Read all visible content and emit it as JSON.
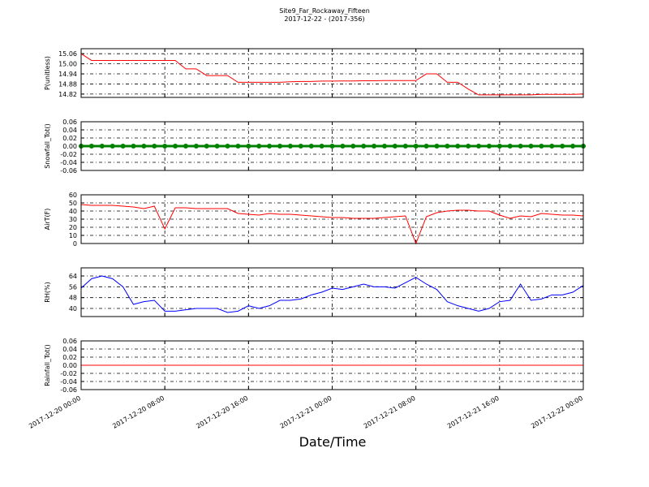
{
  "title": "Site9_Far_Rockaway_Fifteen",
  "subtitle": "2017-12-22 - (2017-356)",
  "xlabel": "Date/Time",
  "chart_data": [
    {
      "type": "line",
      "ylabel": "P(unitless)",
      "color": "#ff0000",
      "grid": true,
      "xlim": [
        "2017-12-20 00:00",
        "2017-12-22 00:00"
      ],
      "xticks": [
        "2017-12-20 00:00",
        "2017-12-20 08:00",
        "2017-12-20 16:00",
        "2017-12-21 00:00",
        "2017-12-21 08:00",
        "2017-12-21 16:00",
        "2017-12-22 00:00"
      ],
      "ylim": [
        14.8,
        15.09
      ],
      "yticks": [
        14.82,
        14.88,
        14.94,
        {
          "value": 15,
          "label": "15.00"
        },
        15.06
      ],
      "x": [
        "2017-12-20 00:00",
        "2017-12-20 01:00",
        "2017-12-20 02:00",
        "2017-12-20 03:00",
        "2017-12-20 04:00",
        "2017-12-20 05:00",
        "2017-12-20 06:00",
        "2017-12-20 07:00",
        "2017-12-20 08:00",
        "2017-12-20 09:00",
        "2017-12-20 10:00",
        "2017-12-20 11:00",
        "2017-12-20 12:00",
        "2017-12-20 13:00",
        "2017-12-20 14:00",
        "2017-12-20 15:00",
        "2017-12-20 16:00",
        "2017-12-20 17:00",
        "2017-12-20 18:00",
        "2017-12-20 19:00",
        "2017-12-20 20:00",
        "2017-12-20 21:00",
        "2017-12-20 22:00",
        "2017-12-20 23:00",
        "2017-12-21 00:00",
        "2017-12-21 01:00",
        "2017-12-21 02:00",
        "2017-12-21 03:00",
        "2017-12-21 04:00",
        "2017-12-21 05:00",
        "2017-12-21 06:00",
        "2017-12-21 07:00",
        "2017-12-21 08:00",
        "2017-12-21 09:00",
        "2017-12-21 10:00",
        "2017-12-21 11:00",
        "2017-12-21 12:00",
        "2017-12-21 13:00",
        "2017-12-21 14:00",
        "2017-12-21 15:00",
        "2017-12-21 16:00",
        "2017-12-21 17:00",
        "2017-12-21 18:00",
        "2017-12-21 19:00",
        "2017-12-21 20:00",
        "2017-12-21 21:00",
        "2017-12-21 22:00",
        "2017-12-21 23:00",
        "2017-12-22 00:00"
      ],
      "values": [
        15.06,
        15.02,
        15.02,
        15.02,
        15.02,
        15.02,
        15.02,
        15.02,
        15.02,
        15.02,
        14.97,
        14.97,
        14.93,
        14.93,
        14.93,
        14.89,
        14.89,
        14.89,
        14.89,
        14.89,
        14.893,
        14.895,
        14.895,
        14.897,
        14.897,
        14.898,
        14.898,
        14.899,
        14.899,
        14.9,
        14.9,
        14.9,
        14.9,
        14.94,
        14.94,
        14.89,
        14.89,
        14.85,
        14.815,
        14.815,
        14.815,
        14.815,
        14.815,
        14.815,
        14.818,
        14.818,
        14.818,
        14.818,
        14.82
      ]
    },
    {
      "type": "line",
      "ylabel": "Snowfall_Tot()",
      "color": "#008000",
      "marker": "o",
      "grid": true,
      "xlim": [
        "2017-12-20 00:00",
        "2017-12-22 00:00"
      ],
      "xticks": [
        "2017-12-20 00:00",
        "2017-12-20 08:00",
        "2017-12-20 16:00",
        "2017-12-21 00:00",
        "2017-12-21 08:00",
        "2017-12-21 16:00",
        "2017-12-22 00:00"
      ],
      "ylim": [
        -0.06,
        0.06
      ],
      "yticks": [
        -0.06,
        -0.04,
        -0.02,
        {
          "value": 0,
          "label": "0.00"
        },
        0.02,
        0.04,
        0.06
      ],
      "x": [
        "2017-12-20 00:00",
        "2017-12-20 01:00",
        "2017-12-20 02:00",
        "2017-12-20 03:00",
        "2017-12-20 04:00",
        "2017-12-20 05:00",
        "2017-12-20 06:00",
        "2017-12-20 07:00",
        "2017-12-20 08:00",
        "2017-12-20 09:00",
        "2017-12-20 10:00",
        "2017-12-20 11:00",
        "2017-12-20 12:00",
        "2017-12-20 13:00",
        "2017-12-20 14:00",
        "2017-12-20 15:00",
        "2017-12-20 16:00",
        "2017-12-20 17:00",
        "2017-12-20 18:00",
        "2017-12-20 19:00",
        "2017-12-20 20:00",
        "2017-12-20 21:00",
        "2017-12-20 22:00",
        "2017-12-20 23:00",
        "2017-12-21 00:00",
        "2017-12-21 01:00",
        "2017-12-21 02:00",
        "2017-12-21 03:00",
        "2017-12-21 04:00",
        "2017-12-21 05:00",
        "2017-12-21 06:00",
        "2017-12-21 07:00",
        "2017-12-21 08:00",
        "2017-12-21 09:00",
        "2017-12-21 10:00",
        "2017-12-21 11:00",
        "2017-12-21 12:00",
        "2017-12-21 13:00",
        "2017-12-21 14:00",
        "2017-12-21 15:00",
        "2017-12-21 16:00",
        "2017-12-21 17:00",
        "2017-12-21 18:00",
        "2017-12-21 19:00",
        "2017-12-21 20:00",
        "2017-12-21 21:00",
        "2017-12-21 22:00",
        "2017-12-21 23:00",
        "2017-12-22 00:00"
      ],
      "values": [
        0,
        0,
        0,
        0,
        0,
        0,
        0,
        0,
        0,
        0,
        0,
        0,
        0,
        0,
        0,
        0,
        0,
        0,
        0,
        0,
        0,
        0,
        0,
        0,
        0,
        0,
        0,
        0,
        0,
        0,
        0,
        0,
        0,
        0,
        0,
        0,
        0,
        0,
        0,
        0,
        0,
        0,
        0,
        0,
        0,
        0,
        0,
        0,
        0
      ]
    },
    {
      "type": "line",
      "ylabel": "AirT(F)",
      "color": "#ff0000",
      "grid": true,
      "xlim": [
        "2017-12-20 00:00",
        "2017-12-22 00:00"
      ],
      "xticks": [
        "2017-12-20 00:00",
        "2017-12-20 08:00",
        "2017-12-20 16:00",
        "2017-12-21 00:00",
        "2017-12-21 08:00",
        "2017-12-21 16:00",
        "2017-12-22 00:00"
      ],
      "ylim": [
        0,
        60
      ],
      "yticks": [
        0,
        10,
        20,
        30,
        40,
        50,
        60
      ],
      "x": [
        "2017-12-20 00:00",
        "2017-12-20 01:00",
        "2017-12-20 02:00",
        "2017-12-20 03:00",
        "2017-12-20 04:00",
        "2017-12-20 05:00",
        "2017-12-20 06:00",
        "2017-12-20 07:00",
        "2017-12-20 08:00",
        "2017-12-20 09:00",
        "2017-12-20 10:00",
        "2017-12-20 11:00",
        "2017-12-20 12:00",
        "2017-12-20 13:00",
        "2017-12-20 14:00",
        "2017-12-20 15:00",
        "2017-12-20 16:00",
        "2017-12-20 17:00",
        "2017-12-20 18:00",
        "2017-12-20 19:00",
        "2017-12-20 20:00",
        "2017-12-20 21:00",
        "2017-12-20 22:00",
        "2017-12-20 23:00",
        "2017-12-21 00:00",
        "2017-12-21 01:00",
        "2017-12-21 02:00",
        "2017-12-21 03:00",
        "2017-12-21 04:00",
        "2017-12-21 05:00",
        "2017-12-21 06:00",
        "2017-12-21 07:00",
        "2017-12-21 08:00",
        "2017-12-21 09:00",
        "2017-12-21 10:00",
        "2017-12-21 11:00",
        "2017-12-21 12:00",
        "2017-12-21 13:00",
        "2017-12-21 14:00",
        "2017-12-21 15:00",
        "2017-12-21 16:00",
        "2017-12-21 17:00",
        "2017-12-21 18:00",
        "2017-12-21 19:00",
        "2017-12-21 20:00",
        "2017-12-21 21:00",
        "2017-12-21 22:00",
        "2017-12-21 23:00",
        "2017-12-22 00:00"
      ],
      "values": [
        48,
        47,
        47,
        47,
        46,
        45,
        43,
        46,
        18,
        44,
        44,
        43,
        43,
        43,
        43,
        37,
        36,
        35,
        37,
        36,
        36,
        35,
        34,
        33,
        32,
        32,
        31,
        31,
        31,
        32,
        33,
        34,
        0,
        33,
        38,
        40,
        41,
        41,
        40,
        40,
        35,
        31,
        34,
        33,
        37,
        36,
        35,
        35,
        34
      ]
    },
    {
      "type": "line",
      "ylabel": "RH(%)",
      "color": "#0000ff",
      "grid": true,
      "xlim": [
        "2017-12-20 00:00",
        "2017-12-22 00:00"
      ],
      "xticks": [
        "2017-12-20 00:00",
        "2017-12-20 08:00",
        "2017-12-20 16:00",
        "2017-12-21 00:00",
        "2017-12-21 08:00",
        "2017-12-21 16:00",
        "2017-12-22 00:00"
      ],
      "ylim": [
        34,
        70
      ],
      "yticks": [
        40,
        48,
        56,
        64
      ],
      "x": [
        "2017-12-20 00:00",
        "2017-12-20 01:00",
        "2017-12-20 02:00",
        "2017-12-20 03:00",
        "2017-12-20 04:00",
        "2017-12-20 05:00",
        "2017-12-20 06:00",
        "2017-12-20 07:00",
        "2017-12-20 08:00",
        "2017-12-20 09:00",
        "2017-12-20 10:00",
        "2017-12-20 11:00",
        "2017-12-20 12:00",
        "2017-12-20 13:00",
        "2017-12-20 14:00",
        "2017-12-20 15:00",
        "2017-12-20 16:00",
        "2017-12-20 17:00",
        "2017-12-20 18:00",
        "2017-12-20 19:00",
        "2017-12-20 20:00",
        "2017-12-20 21:00",
        "2017-12-20 22:00",
        "2017-12-20 23:00",
        "2017-12-21 00:00",
        "2017-12-21 01:00",
        "2017-12-21 02:00",
        "2017-12-21 03:00",
        "2017-12-21 04:00",
        "2017-12-21 05:00",
        "2017-12-21 06:00",
        "2017-12-21 07:00",
        "2017-12-21 08:00",
        "2017-12-21 09:00",
        "2017-12-21 10:00",
        "2017-12-21 11:00",
        "2017-12-21 12:00",
        "2017-12-21 13:00",
        "2017-12-21 14:00",
        "2017-12-21 15:00",
        "2017-12-21 16:00",
        "2017-12-21 17:00",
        "2017-12-21 18:00",
        "2017-12-21 19:00",
        "2017-12-21 20:00",
        "2017-12-21 21:00",
        "2017-12-21 22:00",
        "2017-12-21 23:00",
        "2017-12-22 00:00"
      ],
      "values": [
        55,
        62,
        64,
        62,
        56,
        43,
        45,
        46,
        38,
        38,
        39,
        40,
        40,
        40,
        37,
        38,
        42,
        40,
        42,
        46,
        46,
        47,
        50,
        52,
        55,
        54,
        56,
        58,
        56,
        56,
        55,
        59,
        63,
        58,
        54,
        45,
        42,
        40,
        38,
        40,
        45,
        46,
        58,
        46,
        47,
        50,
        50,
        52,
        57
      ]
    },
    {
      "type": "line",
      "ylabel": "Rainfall_Tot()",
      "color": "#ff0000",
      "grid": true,
      "xlim": [
        "2017-12-20 00:00",
        "2017-12-22 00:00"
      ],
      "xticks": [
        "2017-12-20 00:00",
        "2017-12-20 08:00",
        "2017-12-20 16:00",
        "2017-12-21 00:00",
        "2017-12-21 08:00",
        "2017-12-21 16:00",
        "2017-12-22 00:00"
      ],
      "ylim": [
        -0.06,
        0.06
      ],
      "yticks": [
        -0.06,
        -0.04,
        -0.02,
        {
          "value": 0,
          "label": "0.00"
        },
        0.02,
        0.04,
        0.06
      ],
      "x": [
        "2017-12-20 00:00",
        "2017-12-20 04:00",
        "2017-12-20 08:00",
        "2017-12-20 12:00",
        "2017-12-20 16:00",
        "2017-12-20 20:00",
        "2017-12-21 00:00",
        "2017-12-21 04:00",
        "2017-12-21 08:00",
        "2017-12-21 12:00",
        "2017-12-21 16:00",
        "2017-12-21 20:00",
        "2017-12-22 00:00"
      ],
      "values": [
        0,
        0,
        0,
        0,
        0,
        0,
        0,
        0,
        0,
        0,
        0,
        0,
        0
      ]
    }
  ]
}
